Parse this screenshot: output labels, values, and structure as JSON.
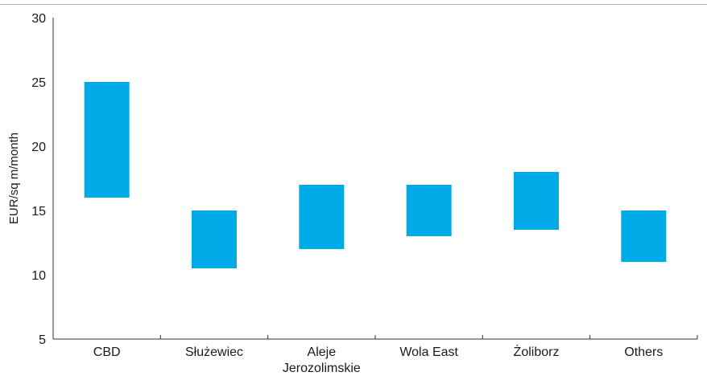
{
  "chart_data": {
    "type": "bar",
    "subtype": "floating-range",
    "categories": [
      "CBD",
      "Służewiec",
      "Aleje Jerozolimskie",
      "Wola East",
      "Żoliborz",
      "Others"
    ],
    "category_label_lines": [
      [
        "CBD"
      ],
      [
        "Służewiec"
      ],
      [
        "Aleje",
        "Jerozolimskie"
      ],
      [
        "Wola East"
      ],
      [
        "Żoliborz"
      ],
      [
        "Others"
      ]
    ],
    "series": [
      {
        "low": [
          16,
          10.5,
          12,
          13,
          13.5,
          11
        ],
        "high": [
          25,
          15,
          17,
          17,
          18,
          15
        ]
      }
    ],
    "ylabel": "EUR/sq m/month",
    "xlabel": "",
    "ylim": [
      5,
      30
    ],
    "yticks": [
      5,
      10,
      15,
      20,
      25,
      30
    ],
    "grid": false,
    "bar_color": "#00aae6"
  }
}
